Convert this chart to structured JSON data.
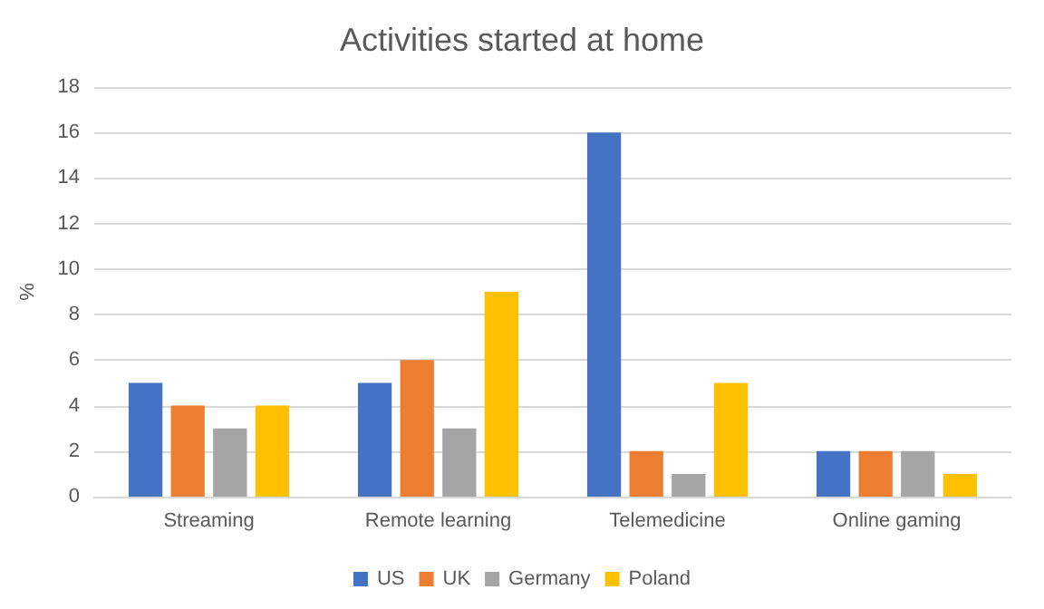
{
  "chart_data": {
    "type": "bar",
    "title": "Activities started at home",
    "ylabel": "%",
    "categories": [
      "Streaming",
      "Remote learning",
      "Telemedicine",
      "Online gaming"
    ],
    "series": [
      {
        "name": "US",
        "color": "#4472c4",
        "values": [
          5,
          5,
          16,
          2
        ]
      },
      {
        "name": "UK",
        "color": "#ed7d31",
        "values": [
          4,
          6,
          2,
          2
        ]
      },
      {
        "name": "Germany",
        "color": "#a5a5a5",
        "values": [
          3,
          3,
          1,
          2
        ]
      },
      {
        "name": "Poland",
        "color": "#ffc000",
        "values": [
          4,
          9,
          5,
          1
        ]
      }
    ],
    "ylim": [
      0,
      18
    ],
    "yticks": [
      0,
      2,
      4,
      6,
      8,
      10,
      12,
      14,
      16,
      18
    ],
    "grid": "y",
    "legend": "bottom"
  }
}
